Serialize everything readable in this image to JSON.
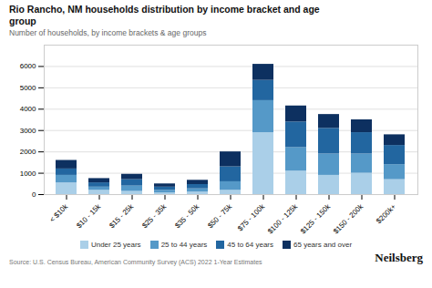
{
  "chart_data": {
    "type": "bar",
    "stacked": true,
    "title": "Rio Rancho, NM households distribution by income bracket and age\ngroup",
    "subtitle": "Number of households, by income brackets & age groups",
    "annotations": [
      "Source: U.S. Census Bureau, American Community Survey (ACS) 2022 1-Year Estimates",
      "Neilsberg"
    ],
    "categories": [
      "< $10k",
      "$10 - 15k",
      "$15 - 25k",
      "$25 - 35k",
      "$35 - 50k",
      "$50 - 75k",
      "$75 - 100k",
      "$100 - 125k",
      "$125 - 150k",
      "$150 - 200k",
      "$200k+"
    ],
    "series": [
      {
        "name": "Under 25 years",
        "color": "#aacfe8",
        "values": [
          550,
          200,
          150,
          80,
          120,
          200,
          2900,
          1100,
          900,
          1000,
          700
        ]
      },
      {
        "name": "25 to 44 years",
        "color": "#5599c8",
        "values": [
          350,
          150,
          250,
          120,
          150,
          400,
          1500,
          1100,
          1000,
          900,
          700
        ]
      },
      {
        "name": "45 to 64 years",
        "color": "#2266a0",
        "values": [
          300,
          200,
          300,
          150,
          200,
          700,
          950,
          1200,
          1200,
          1000,
          900
        ]
      },
      {
        "name": "65 years and over",
        "color": "#0d3060",
        "values": [
          400,
          200,
          250,
          150,
          200,
          700,
          750,
          750,
          650,
          600,
          500
        ]
      }
    ],
    "ylim": [
      0,
      7000
    ],
    "yticks": [
      0,
      1000,
      2000,
      3000,
      4000,
      5000,
      6000
    ],
    "grid": true,
    "legend": "bottom"
  }
}
